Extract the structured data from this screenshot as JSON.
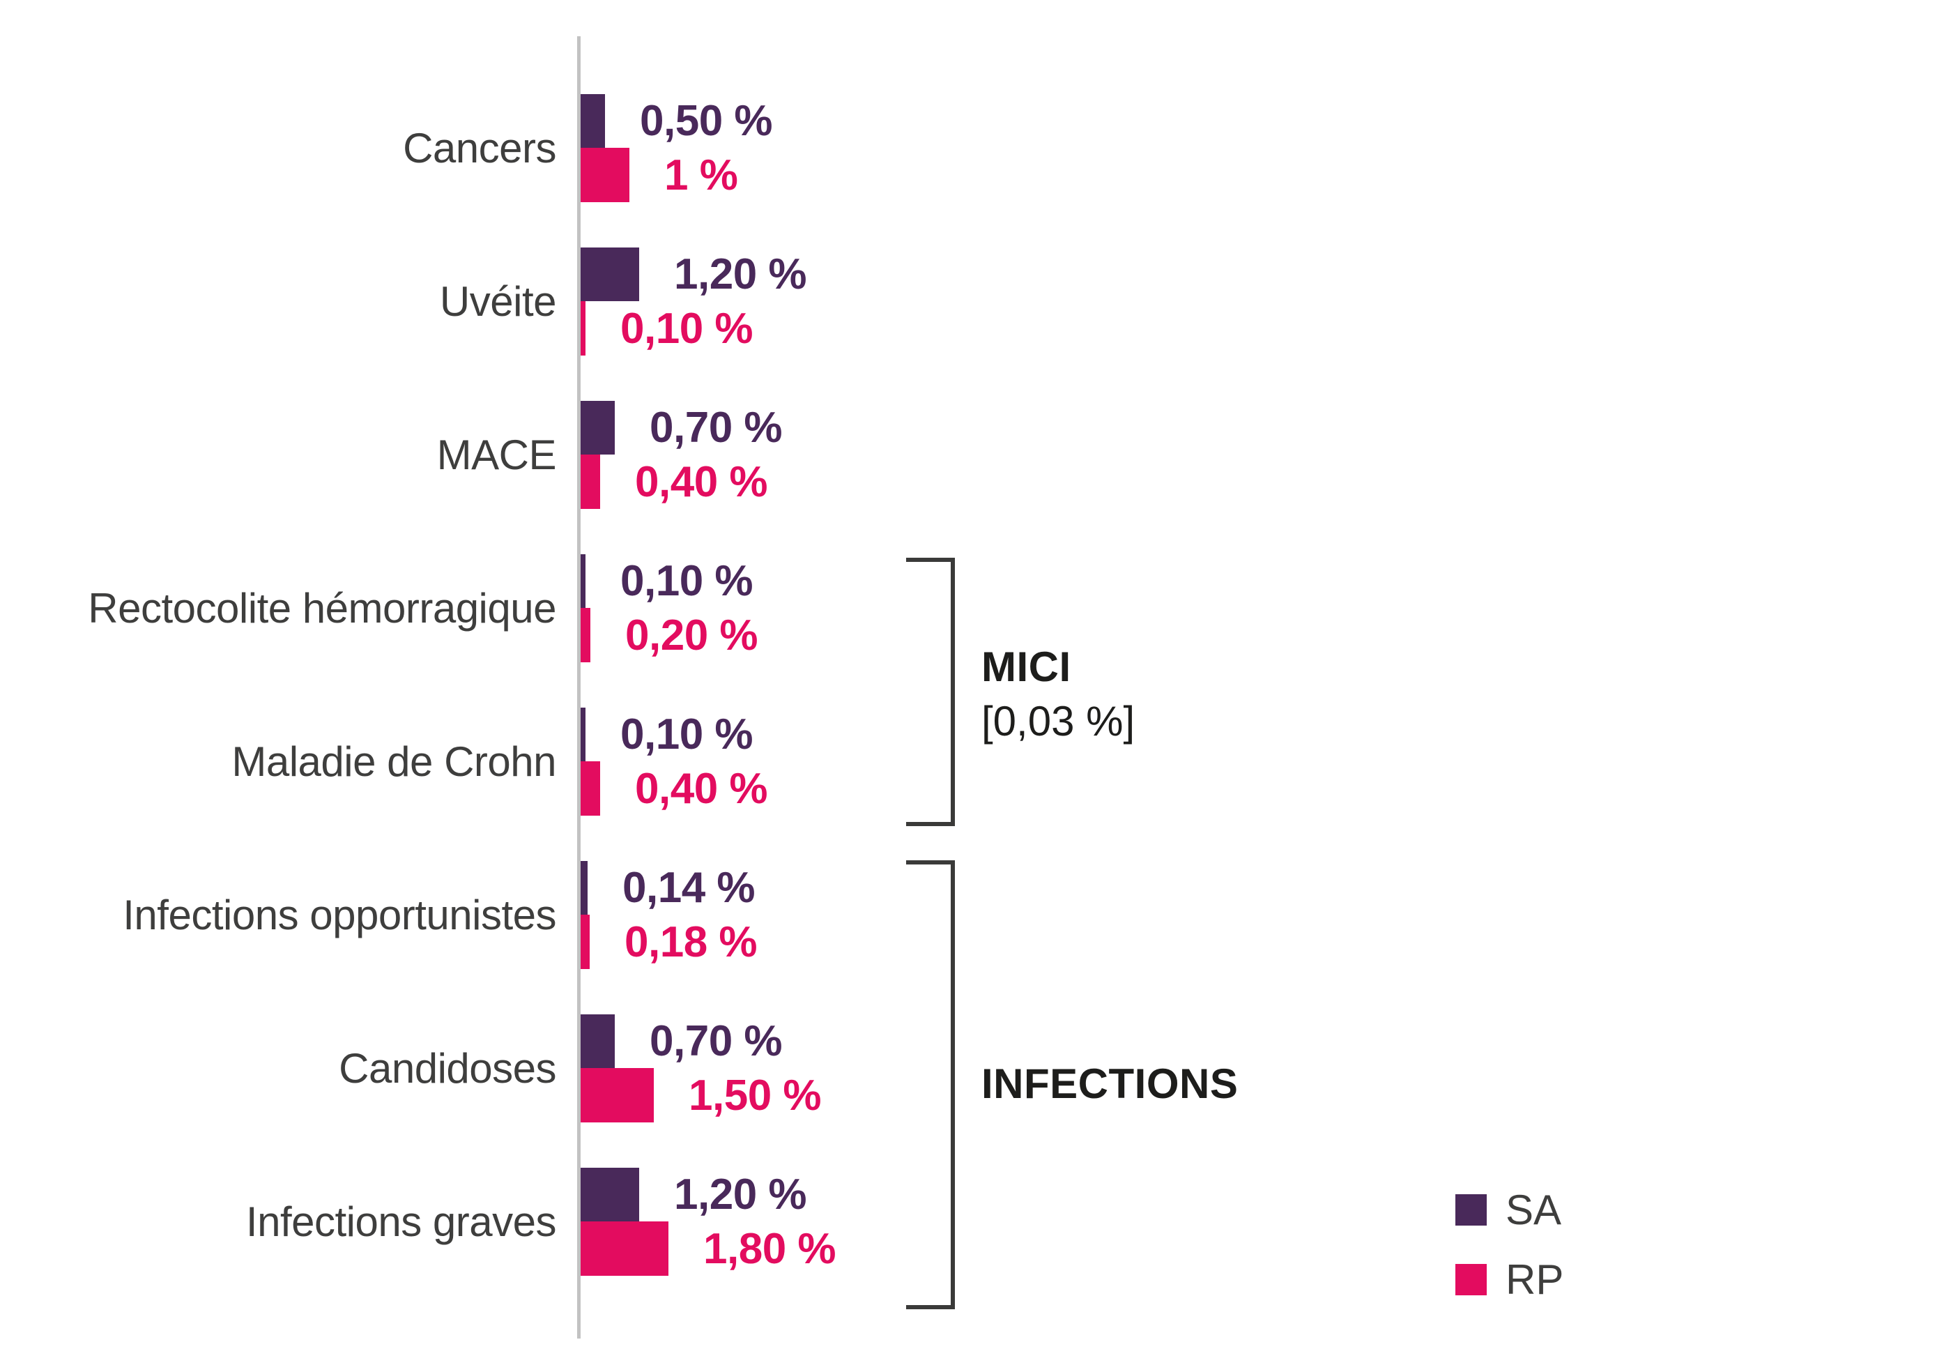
{
  "chart_data": {
    "type": "bar",
    "orientation": "horizontal",
    "title": "",
    "xlabel": "",
    "ylabel": "",
    "value_unit": "%",
    "xlim": [
      0,
      2
    ],
    "grid": "off",
    "legend_position": "bottom-right",
    "categories": [
      "Cancers",
      "Uvéite",
      "MACE",
      "Rectocolite hémorragique",
      "Maladie de Crohn",
      "Infections opportunistes",
      "Candidoses",
      "Infections graves"
    ],
    "series": [
      {
        "name": "SA",
        "color": "#49295a",
        "values": [
          0.5,
          1.2,
          0.7,
          0.1,
          0.1,
          0.14,
          0.7,
          1.2
        ],
        "value_labels": [
          "0,50 %",
          "1,20 %",
          "0,70 %",
          "0,10 %",
          "0,10 %",
          "0,14 %",
          "0,70 %",
          "1,20 %"
        ]
      },
      {
        "name": "RP",
        "color": "#e30c5f",
        "values": [
          1.0,
          0.1,
          0.4,
          0.2,
          0.4,
          0.18,
          1.5,
          1.8
        ],
        "value_labels": [
          "1 %",
          "0,10 %",
          "0,40 %",
          "0,20 %",
          "0,40 %",
          "0,18 %",
          "1,50 %",
          "1,80 %"
        ]
      }
    ],
    "groups": [
      {
        "label": "MICI",
        "sublabel": "[0,03 %]",
        "span": [
          "Rectocolite hémorragique",
          "Maladie de Crohn"
        ]
      },
      {
        "label": "INFECTIONS",
        "sublabel": "",
        "span": [
          "Infections opportunistes",
          "Candidoses",
          "Infections graves"
        ]
      }
    ]
  },
  "legend": {
    "entries": [
      {
        "label": "SA",
        "color": "#49295a"
      },
      {
        "label": "RP",
        "color": "#e30c5f"
      }
    ]
  },
  "colors": {
    "sa": "#49295a",
    "rp": "#e30c5f",
    "axis_line": "#c2c2c2",
    "category_text": "#3e3e3d",
    "bracket": "#3a3a39"
  }
}
